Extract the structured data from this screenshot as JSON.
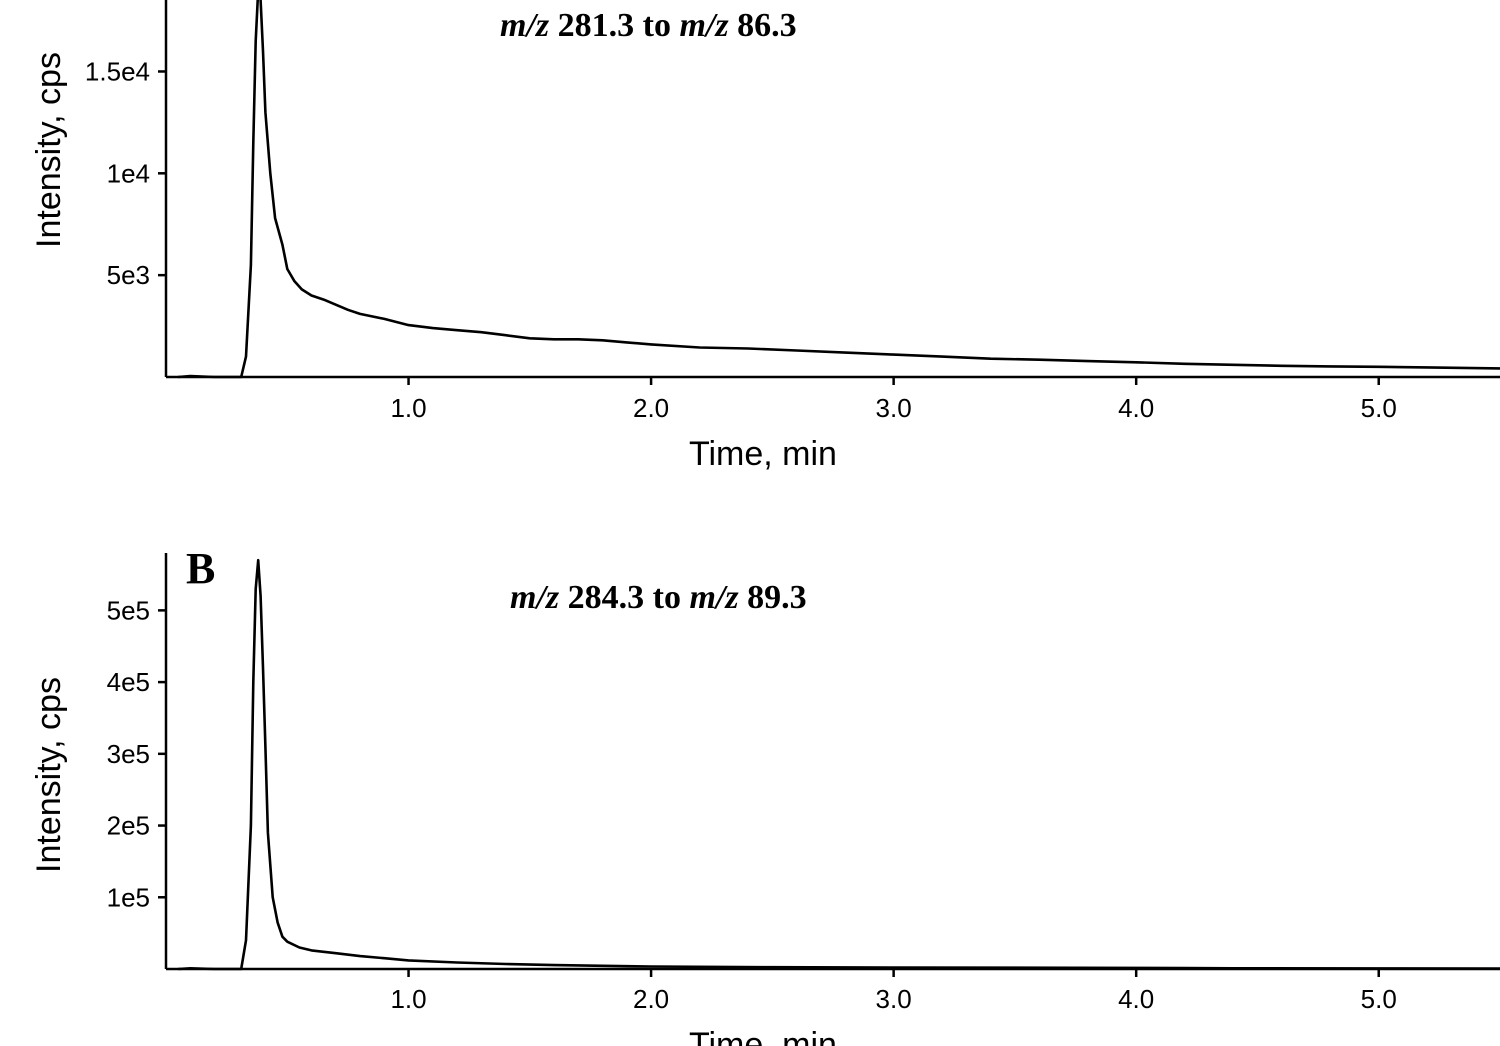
{
  "chart_data": [
    {
      "type": "line",
      "panel": "",
      "title_parts": [
        {
          "text": "m/z",
          "italic": true
        },
        {
          "text": " 281.3 to ",
          "italic": false
        },
        {
          "text": "m/z",
          "italic": true
        },
        {
          "text": " 86.3",
          "italic": false
        }
      ],
      "xlabel": "Time, min",
      "ylabel": "Intensity, cps",
      "xlim": [
        0,
        5.5
      ],
      "ylim": [
        0,
        19000
      ],
      "xticks": [
        1.0,
        2.0,
        3.0,
        4.0,
        5.0
      ],
      "xtick_labels": [
        "1.0",
        "2.0",
        "3.0",
        "4.0",
        "5.0"
      ],
      "yticks": [
        5000,
        10000,
        15000
      ],
      "ytick_labels": [
        "5e3",
        "1e4",
        "1.5e4"
      ],
      "series": [
        {
          "x": [
            0.05,
            0.1,
            0.2,
            0.28,
            0.31,
            0.33,
            0.35,
            0.36,
            0.37,
            0.38,
            0.39,
            0.4,
            0.41,
            0.43,
            0.45,
            0.48,
            0.5,
            0.53,
            0.56,
            0.6,
            0.65,
            0.7,
            0.75,
            0.8,
            0.9,
            1.0,
            1.1,
            1.2,
            1.3,
            1.4,
            1.5,
            1.6,
            1.7,
            1.8,
            1.9,
            2.0,
            2.2,
            2.4,
            2.6,
            2.8,
            3.0,
            3.2,
            3.4,
            3.6,
            3.8,
            4.0,
            4.2,
            4.4,
            4.6,
            4.8,
            5.0,
            5.2,
            5.5
          ],
          "y": [
            0,
            50,
            0,
            0,
            0,
            1000,
            5500,
            11500,
            16500,
            19000,
            18500,
            16000,
            13000,
            10000,
            7800,
            6500,
            5300,
            4700,
            4300,
            4000,
            3800,
            3550,
            3300,
            3100,
            2850,
            2550,
            2400,
            2300,
            2200,
            2050,
            1900,
            1850,
            1850,
            1800,
            1700,
            1600,
            1450,
            1400,
            1300,
            1200,
            1100,
            1000,
            900,
            850,
            780,
            720,
            650,
            600,
            550,
            520,
            500,
            470,
            420
          ]
        }
      ]
    },
    {
      "type": "line",
      "panel": "B",
      "title_parts": [
        {
          "text": "m/z",
          "italic": true
        },
        {
          "text": " 284.3 to ",
          "italic": false
        },
        {
          "text": "m/z",
          "italic": true
        },
        {
          "text": " 89.3",
          "italic": false
        }
      ],
      "xlabel": "Time, min",
      "ylabel": "Intensity, cps",
      "xlim": [
        0,
        5.5
      ],
      "ylim": [
        0,
        580000
      ],
      "xticks": [
        1.0,
        2.0,
        3.0,
        4.0,
        5.0
      ],
      "xtick_labels": [
        "1.0",
        "2.0",
        "3.0",
        "4.0",
        "5.0"
      ],
      "yticks": [
        100000,
        200000,
        300000,
        400000,
        500000
      ],
      "ytick_labels": [
        "1e5",
        "2e5",
        "3e5",
        "4e5",
        "5e5"
      ],
      "series": [
        {
          "x": [
            0.05,
            0.1,
            0.2,
            0.28,
            0.31,
            0.33,
            0.35,
            0.36,
            0.37,
            0.38,
            0.39,
            0.4,
            0.41,
            0.42,
            0.44,
            0.46,
            0.48,
            0.5,
            0.55,
            0.6,
            0.7,
            0.8,
            0.9,
            1.0,
            1.2,
            1.4,
            1.6,
            1.8,
            2.0,
            2.5,
            3.0,
            3.5,
            4.0,
            4.2,
            4.4,
            5.0,
            5.5
          ],
          "y": [
            0,
            1000,
            0,
            0,
            0,
            40000,
            200000,
            400000,
            530000,
            570000,
            520000,
            420000,
            310000,
            190000,
            100000,
            65000,
            45000,
            38000,
            30000,
            26000,
            22000,
            18000,
            15000,
            12000,
            9000,
            7000,
            5500,
            4500,
            3500,
            2500,
            2000,
            1800,
            1500,
            1200,
            1000,
            800,
            600
          ]
        }
      ]
    }
  ]
}
